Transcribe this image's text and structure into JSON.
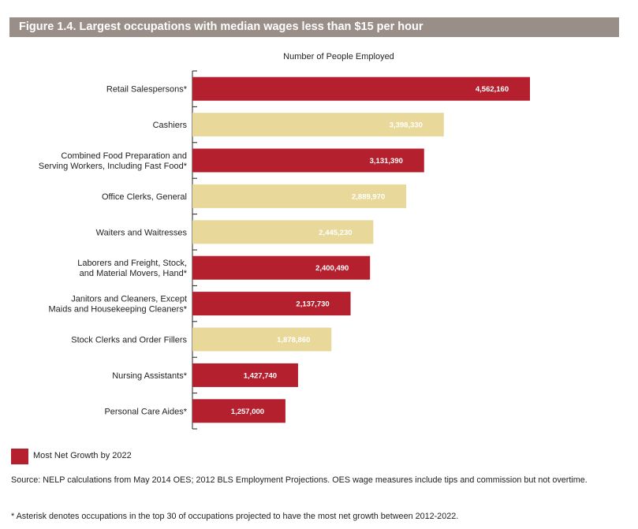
{
  "title": "Figure 1.4. Largest occupations with median wages less than $15 per hour",
  "colors": {
    "title_bg": "#9a8f88",
    "growth": "#b5202e",
    "other": "#e8d99a",
    "axis": "#222222"
  },
  "chart_data": {
    "type": "bar",
    "orientation": "horizontal",
    "xlabel": "Number of People Employed",
    "xlim": [
      0,
      5000000
    ],
    "categories": [
      "Retail Salespersons*",
      "Cashiers",
      "Combined Food Preparation and\nServing Workers, Including Fast Food*",
      "Office Clerks, General",
      "Waiters and Waitresses",
      "Laborers and Freight, Stock,\nand Material Movers, Hand*",
      "Janitors and Cleaners, Except\nMaids and Housekeeping Cleaners*",
      "Stock Clerks and Order Fillers",
      "Nursing Assistants*",
      "Personal Care Aides*"
    ],
    "values": [
      4562160,
      3398330,
      3131390,
      2889970,
      2445230,
      2400490,
      2137730,
      1878860,
      1427740,
      1257000
    ],
    "value_labels": [
      "4,562,160",
      "3,398,330",
      "3,131,390",
      "2,889,970",
      "2,445,230",
      "2,400,490",
      "2,137,730",
      "1,878,860",
      "1,427,740",
      "1,257,000"
    ],
    "most_net_growth": [
      true,
      false,
      true,
      false,
      false,
      true,
      true,
      false,
      true,
      true
    ],
    "legend": [
      {
        "label": "Most Net Growth by 2022",
        "color": "#b5202e"
      }
    ]
  },
  "source": "Source: NELP calculations from May 2014 OES; 2012 BLS Employment Projections. OES wage measures include tips and commission but not overtime.",
  "footnote": "* Asterisk denotes occupations in the top 30 of occupations projected to have the most net growth between 2012-2022."
}
